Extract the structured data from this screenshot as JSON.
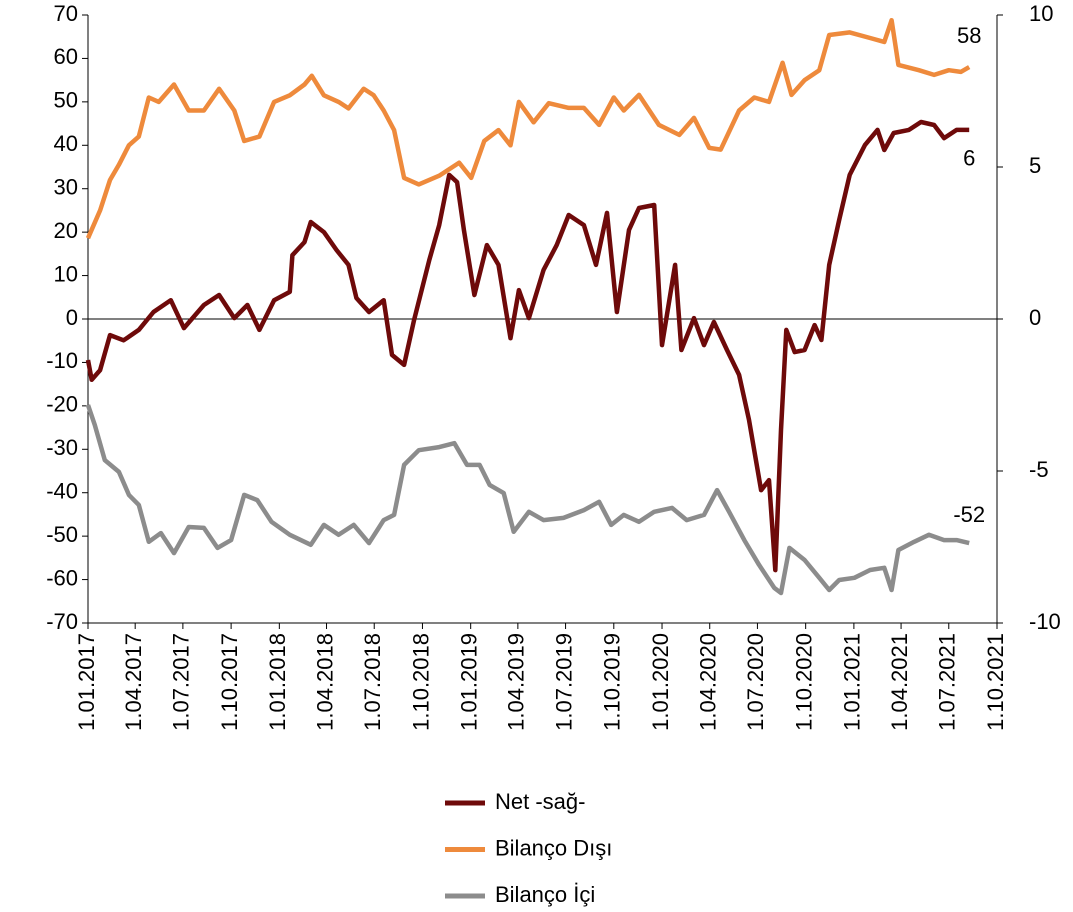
{
  "chart_data": {
    "type": "line",
    "xlim": [
      "2017-01-01",
      "2021-10-01"
    ],
    "xticks": [
      {
        "value": "2017-01-01",
        "label": "1.01.2017"
      },
      {
        "value": "2017-04-01",
        "label": "1.04.2017"
      },
      {
        "value": "2017-07-01",
        "label": "1.07.2017"
      },
      {
        "value": "2017-10-01",
        "label": "1.10.2017"
      },
      {
        "value": "2018-01-01",
        "label": "1.01.2018"
      },
      {
        "value": "2018-04-01",
        "label": "1.04.2018"
      },
      {
        "value": "2018-07-01",
        "label": "1.07.2018"
      },
      {
        "value": "2018-10-01",
        "label": "1.10.2018"
      },
      {
        "value": "2019-01-01",
        "label": "1.01.2019"
      },
      {
        "value": "2019-04-01",
        "label": "1.04.2019"
      },
      {
        "value": "2019-07-01",
        "label": "1.07.2019"
      },
      {
        "value": "2019-10-01",
        "label": "1.10.2019"
      },
      {
        "value": "2020-01-01",
        "label": "1.01.2020"
      },
      {
        "value": "2020-04-01",
        "label": "1.04.2020"
      },
      {
        "value": "2020-07-01",
        "label": "1.07.2020"
      },
      {
        "value": "2020-10-01",
        "label": "1.10.2020"
      },
      {
        "value": "2021-01-01",
        "label": "1.01.2021"
      },
      {
        "value": "2021-04-01",
        "label": "1.04.2021"
      },
      {
        "value": "2021-07-01",
        "label": "1.07.2021"
      },
      {
        "value": "2021-10-01",
        "label": "1.10.2021"
      }
    ],
    "ylim": [
      -70,
      70
    ],
    "yticks": [
      -70,
      -60,
      -50,
      -40,
      -30,
      -20,
      -10,
      0,
      10,
      20,
      30,
      40,
      50,
      60,
      70
    ],
    "y2lim": [
      -10,
      10
    ],
    "y2ticks": [
      -10,
      -5,
      0,
      5,
      10
    ],
    "grid": false,
    "legend": "bottom",
    "annotations": [
      "6",
      "58",
      "-52"
    ],
    "series": [
      {
        "name": "Net -sağ-",
        "color": "#6e0a0a",
        "axis": "y2",
        "x": [
          "2017-01-01",
          "2017-01-08",
          "2017-01-24",
          "2017-02-12",
          "2017-03-10",
          "2017-04-08",
          "2017-05-06",
          "2017-06-08",
          "2017-07-03",
          "2017-08-10",
          "2017-09-08",
          "2017-10-07",
          "2017-11-01",
          "2017-11-24",
          "2017-12-22",
          "2018-01-21",
          "2018-01-26",
          "2018-02-18",
          "2018-03-02",
          "2018-03-27",
          "2018-04-20",
          "2018-05-13",
          "2018-05-28",
          "2018-06-21",
          "2018-07-19",
          "2018-08-04",
          "2018-08-27",
          "2018-09-15",
          "2018-10-14",
          "2018-11-02",
          "2018-11-21",
          "2018-12-06",
          "2018-12-19",
          "2019-01-08",
          "2019-02-01",
          "2019-02-23",
          "2019-03-18",
          "2019-04-03",
          "2019-04-22",
          "2019-05-20",
          "2019-06-14",
          "2019-07-07",
          "2019-08-05",
          "2019-08-28",
          "2019-09-18",
          "2019-10-07",
          "2019-10-30",
          "2019-11-18",
          "2019-12-17",
          "2020-01-01",
          "2020-01-26",
          "2020-02-07",
          "2020-03-02",
          "2020-03-21",
          "2020-04-09",
          "2020-05-04",
          "2020-05-27",
          "2020-06-15",
          "2020-07-08",
          "2020-07-23",
          "2020-08-04",
          "2020-08-15",
          "2020-08-25",
          "2020-09-10",
          "2020-09-29",
          "2020-10-18",
          "2020-10-31",
          "2020-11-15",
          "2020-12-04",
          "2020-12-24",
          "2021-01-22",
          "2021-02-15",
          "2021-02-28",
          "2021-03-18",
          "2021-04-16",
          "2021-05-09",
          "2021-06-03",
          "2021-06-22",
          "2021-07-16",
          "2021-08-09"
        ],
        "values": [
          -1.35,
          -2,
          -1.68,
          -0.53,
          -0.7,
          -0.36,
          0.23,
          0.62,
          -0.3,
          0.46,
          0.79,
          0.03,
          0.46,
          -0.36,
          0.62,
          0.89,
          2.1,
          2.53,
          3.19,
          2.86,
          2.27,
          1.78,
          0.69,
          0.23,
          0.62,
          -1.18,
          -1.51,
          -0.03,
          1.94,
          3.09,
          4.74,
          4.5,
          2.93,
          0.79,
          2.43,
          1.78,
          -0.63,
          0.95,
          0.03,
          1.61,
          2.43,
          3.42,
          3.09,
          1.78,
          3.49,
          0.23,
          2.93,
          3.65,
          3.75,
          -0.86,
          1.78,
          -1.02,
          0.03,
          -0.86,
          -0.1,
          -1.02,
          -1.84,
          -3.32,
          -5.63,
          -5.3,
          -8.26,
          -3.65,
          -0.36,
          -1.09,
          -1.02,
          -0.2,
          -0.69,
          1.78,
          3.26,
          4.74,
          5.72,
          6.22,
          5.56,
          6.12,
          6.22,
          6.48,
          6.38,
          5.95,
          6.22,
          6.22
        ]
      },
      {
        "name": "Bilanço Dışı",
        "color": "#ee8a3c",
        "axis": "y",
        "x": [
          "2017-01-01",
          "2017-01-24",
          "2017-02-12",
          "2017-03-01",
          "2017-03-20",
          "2017-04-08",
          "2017-04-27",
          "2017-05-16",
          "2017-06-14",
          "2017-07-12",
          "2017-08-10",
          "2017-09-08",
          "2017-10-07",
          "2017-10-26",
          "2017-11-24",
          "2017-12-22",
          "2018-01-21",
          "2018-02-18",
          "2018-03-04",
          "2018-03-27",
          "2018-04-24",
          "2018-05-13",
          "2018-06-11",
          "2018-06-30",
          "2018-07-19",
          "2018-08-08",
          "2018-08-27",
          "2018-09-24",
          "2018-11-02",
          "2018-12-10",
          "2019-01-02",
          "2019-01-27",
          "2019-02-23",
          "2019-03-18",
          "2019-04-03",
          "2019-05-01",
          "2019-05-30",
          "2019-07-07",
          "2019-08-05",
          "2019-09-03",
          "2019-10-01",
          "2019-10-20",
          "2019-11-18",
          "2019-12-26",
          "2020-02-03",
          "2020-03-02",
          "2020-03-31",
          "2020-04-22",
          "2020-05-27",
          "2020-06-25",
          "2020-07-23",
          "2020-08-18",
          "2020-09-04",
          "2020-09-29",
          "2020-10-27",
          "2020-11-15",
          "2020-12-24",
          "2021-02-01",
          "2021-02-28",
          "2021-03-14",
          "2021-03-27",
          "2021-05-05",
          "2021-06-03",
          "2021-07-01",
          "2021-07-24",
          "2021-08-09"
        ],
        "values": [
          18.6,
          25,
          32,
          35.5,
          40,
          42,
          51,
          50,
          54,
          48,
          48,
          53,
          48,
          41,
          42,
          50,
          51.5,
          54,
          56,
          51.5,
          50,
          48.5,
          53,
          51.5,
          48,
          43.5,
          32.5,
          31,
          33,
          36,
          32.5,
          41,
          43.5,
          40,
          50,
          45.3,
          49.7,
          48.6,
          48.6,
          44.7,
          51,
          48,
          51.6,
          44.7,
          42.4,
          46.3,
          39.4,
          39,
          48,
          51,
          50,
          59,
          51.6,
          55,
          57.3,
          65.4,
          66,
          64.7,
          63.8,
          68.8,
          58.5,
          57.3,
          56.2,
          57.3,
          56.9,
          58
        ]
      },
      {
        "name": "Bilanço İçi",
        "color": "#8c8c8c",
        "axis": "y",
        "x": [
          "2017-01-01",
          "2017-01-14",
          "2017-02-02",
          "2017-03-01",
          "2017-03-20",
          "2017-04-08",
          "2017-04-27",
          "2017-05-20",
          "2017-06-14",
          "2017-07-12",
          "2017-08-10",
          "2017-09-05",
          "2017-10-01",
          "2017-10-26",
          "2017-11-20",
          "2017-12-17",
          "2018-01-21",
          "2018-03-02",
          "2018-03-27",
          "2018-04-24",
          "2018-05-23",
          "2018-06-21",
          "2018-07-19",
          "2018-08-08",
          "2018-08-27",
          "2018-09-24",
          "2018-11-02",
          "2018-12-01",
          "2018-12-25",
          "2019-01-18",
          "2019-02-06",
          "2019-03-05",
          "2019-03-24",
          "2019-04-22",
          "2019-05-20",
          "2019-06-27",
          "2019-08-05",
          "2019-09-03",
          "2019-09-26",
          "2019-10-20",
          "2019-11-18",
          "2019-12-17",
          "2020-01-20",
          "2020-02-17",
          "2020-03-21",
          "2020-04-15",
          "2020-05-08",
          "2020-06-06",
          "2020-07-04",
          "2020-08-02",
          "2020-08-15",
          "2020-08-31",
          "2020-09-29",
          "2020-10-27",
          "2020-11-15",
          "2020-12-04",
          "2021-01-02",
          "2021-02-01",
          "2021-02-28",
          "2021-03-14",
          "2021-03-27",
          "2021-04-26",
          "2021-05-24",
          "2021-06-22",
          "2021-07-16",
          "2021-08-09"
        ],
        "values": [
          -19.8,
          -24.4,
          -32.5,
          -35.2,
          -40.5,
          -42.8,
          -51.3,
          -49.3,
          -53.9,
          -47.9,
          -48.1,
          -52.7,
          -50.9,
          -40.5,
          -41.7,
          -46.7,
          -49.7,
          -52,
          -47.4,
          -49.7,
          -47.4,
          -51.6,
          -46.3,
          -45.1,
          -33.6,
          -30.2,
          -29.5,
          -28.6,
          -33.6,
          -33.6,
          -38.2,
          -40.1,
          -49,
          -44.4,
          -46.3,
          -45.8,
          -44,
          -42.1,
          -47.4,
          -45.1,
          -46.7,
          -44.4,
          -43.5,
          -46.3,
          -45.1,
          -39.4,
          -44.4,
          -50.9,
          -56.6,
          -61.9,
          -63.1,
          -52.7,
          -55.5,
          -59.6,
          -62.4,
          -60.1,
          -59.6,
          -57.8,
          -57.3,
          -62.4,
          -53.2,
          -51.3,
          -49.7,
          -50.9,
          -50.9,
          -51.6
        ]
      }
    ]
  }
}
